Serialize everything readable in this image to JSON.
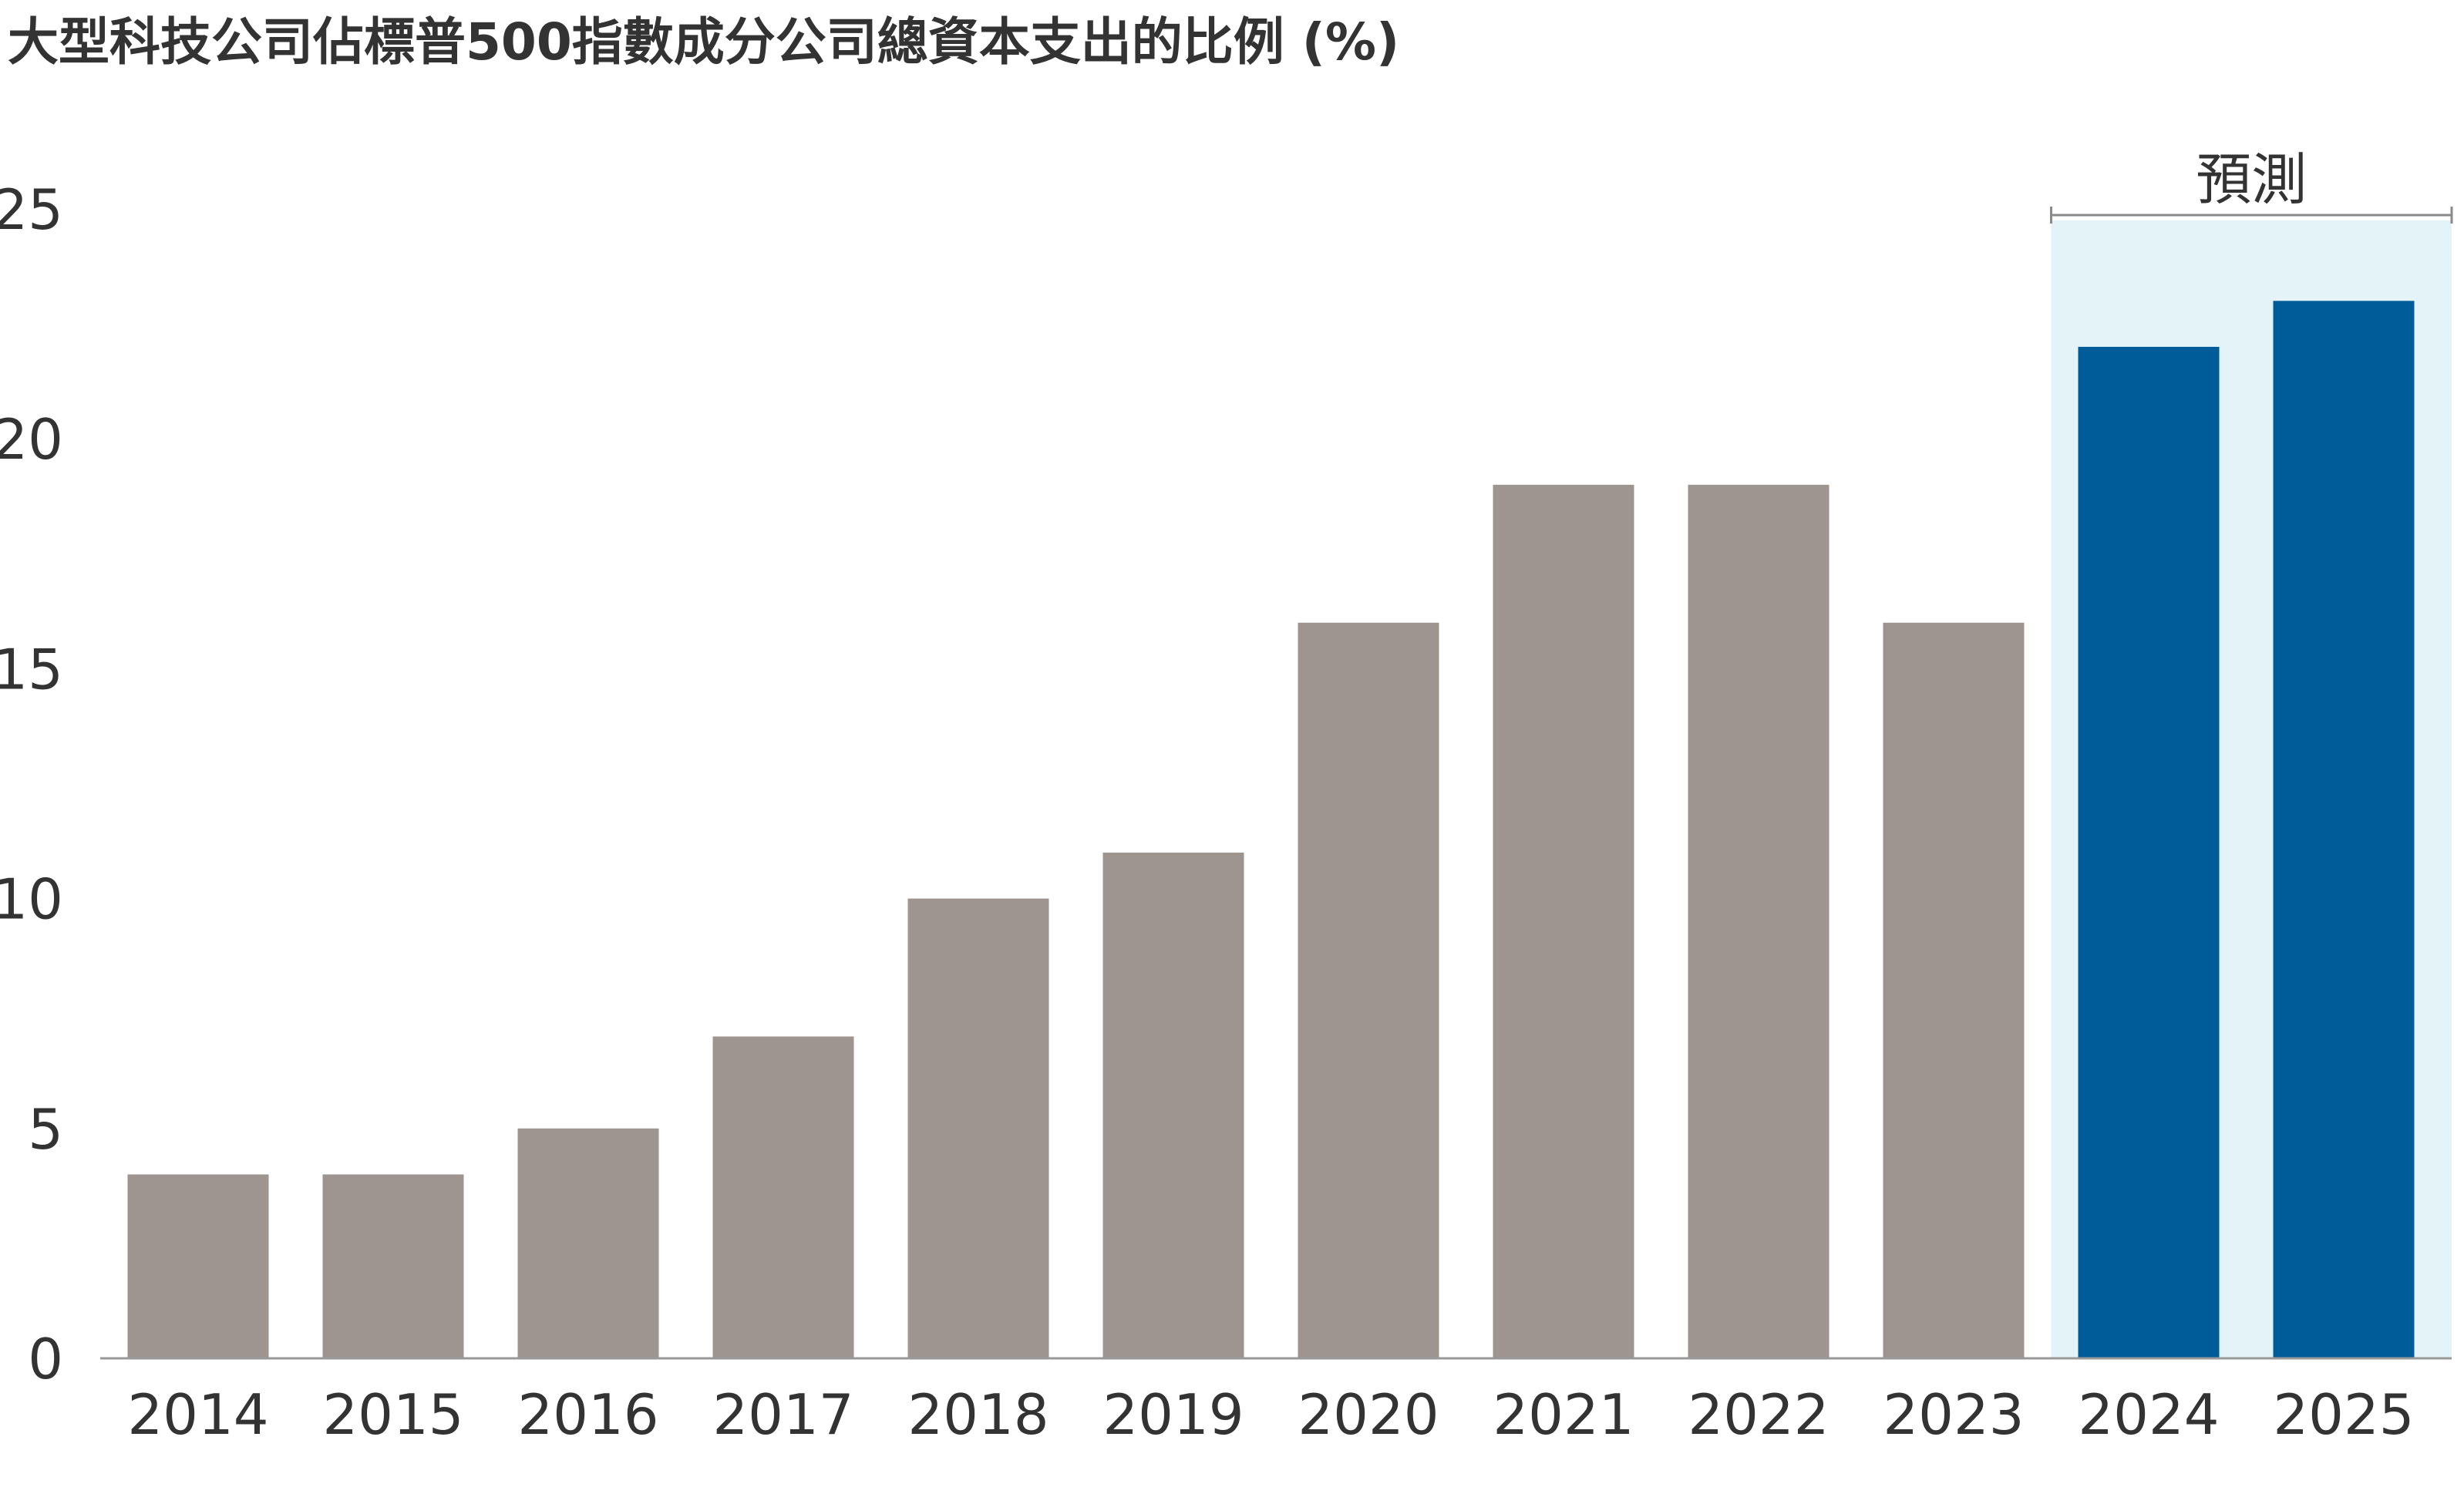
{
  "chart_data": {
    "type": "bar",
    "title": "大型科技公司佔標普500指數成分公司總資本支出的比例 (%)",
    "categories": [
      "2014",
      "2015",
      "2016",
      "2017",
      "2018",
      "2019",
      "2020",
      "2021",
      "2022",
      "2023",
      "2024",
      "2025"
    ],
    "values": [
      4,
      4,
      5,
      7,
      10,
      11,
      16,
      19,
      19,
      16,
      22,
      23
    ],
    "forecast_from": "2024",
    "forecast_label": "預測",
    "ylim": [
      0,
      25
    ],
    "yticks": [
      0,
      5,
      10,
      15,
      20,
      25
    ],
    "xlabel": "",
    "ylabel": "",
    "grid": false,
    "colors": {
      "actual": "#9e9490",
      "forecast": "#005c99",
      "forecast_band": "#e3f3f8",
      "axis": "#999999",
      "text": "#333333"
    }
  }
}
